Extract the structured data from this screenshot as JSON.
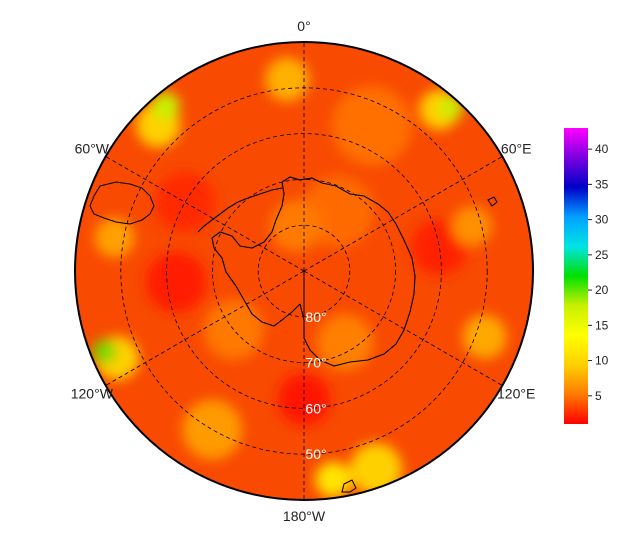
{
  "map": {
    "projection": "south-polar-stereographic",
    "longitude_labels": [
      {
        "text": "0°",
        "lon": 0
      },
      {
        "text": "60°E",
        "lon": 60
      },
      {
        "text": "120°E",
        "lon": 120
      },
      {
        "text": "180°W",
        "lon": 180
      },
      {
        "text": "120°W",
        "lon": -120
      },
      {
        "text": "60°W",
        "lon": -60
      }
    ],
    "latitude_labels": [
      {
        "text": "80°",
        "lat": -80
      },
      {
        "text": "70°",
        "lat": -70
      },
      {
        "text": "60°",
        "lat": -60
      },
      {
        "text": "50°",
        "lat": -50
      }
    ],
    "outer_latitude": -40,
    "meridians_deg": [
      0,
      60,
      120,
      180,
      240,
      300
    ],
    "gridline_style": "dashed"
  },
  "colorbar": {
    "min": 1,
    "max": 43,
    "ticks": [
      5,
      10,
      15,
      20,
      25,
      30,
      35,
      40
    ],
    "colors": [
      "#ff0000",
      "#ff7a00",
      "#ffd000",
      "#ffff00",
      "#c8f000",
      "#00e000",
      "#00e4e4",
      "#00a0ff",
      "#0000c8",
      "#7a00e0",
      "#ff00ff"
    ]
  },
  "colors": {
    "coastline": "#000000",
    "gridline": "#000000",
    "map_border": "#000000"
  }
}
